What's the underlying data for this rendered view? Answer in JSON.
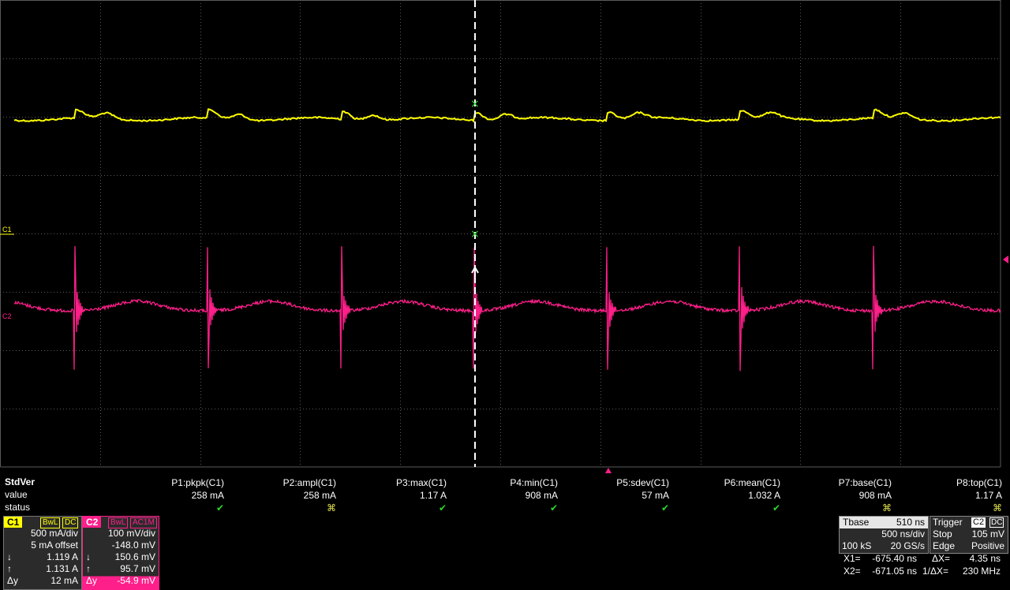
{
  "measure": {
    "title": "StdVer",
    "row_value": "value",
    "row_status": "status",
    "params": [
      {
        "name": "P1:pkpk(C1)",
        "value": "258 mA",
        "status": "ok"
      },
      {
        "name": "P2:ampl(C1)",
        "value": "258 mA",
        "status": "na"
      },
      {
        "name": "P3:max(C1)",
        "value": "1.17 A",
        "status": "ok"
      },
      {
        "name": "P4:min(C1)",
        "value": "908 mA",
        "status": "ok"
      },
      {
        "name": "P5:sdev(C1)",
        "value": "57 mA",
        "status": "ok"
      },
      {
        "name": "P6:mean(C1)",
        "value": "1.032 A",
        "status": "ok"
      },
      {
        "name": "P7:base(C1)",
        "value": "908 mA",
        "status": "na"
      },
      {
        "name": "P8:top(C1)",
        "value": "1.17 A",
        "status": "na"
      }
    ]
  },
  "channels": {
    "c1": {
      "tag": "C1",
      "bw": "BwL",
      "coupling": "DC",
      "scale": "500 mA/div",
      "offset": "5 mA offset",
      "y1": "1.119 A",
      "y2": "1.131 A",
      "dy_label": "Δy",
      "dy": "12 mA",
      "color": "#ffff00"
    },
    "c2": {
      "tag": "C2",
      "bw": "BwL",
      "coupling": "AC1M",
      "scale": "100 mV/div",
      "offset": "-148.0 mV",
      "y1": "150.6 mV",
      "y2": "95.7 mV",
      "dy_label": "Δy",
      "dy": "-54.9 mV",
      "color": "#ff1f8a"
    }
  },
  "tbase": {
    "label": "Tbase",
    "value": "510 ns",
    "rate": "500 ns/div",
    "samples": "100 kS",
    "srate": "20 GS/s"
  },
  "trigger": {
    "label": "Trigger",
    "src": "C2",
    "coupling": "DC",
    "mode": "Stop",
    "level": "105 mV",
    "type": "Edge",
    "slope": "Positive"
  },
  "cursors": {
    "x1_label": "X1=",
    "x1": "-675.40 ns",
    "x2_label": "X2=",
    "x2": "-671.05 ns",
    "dx_label": "ΔX=",
    "dx": "4.35 ns",
    "inv_label": "1/ΔX=",
    "inv": "230 MHz"
  },
  "trace_labels": {
    "c1": "C1",
    "c2": "C2"
  },
  "colors": {
    "c1": "#ffff00",
    "c2": "#ff1f8a",
    "ok": "#2fd52f",
    "grid": "#5a5a5a"
  }
}
